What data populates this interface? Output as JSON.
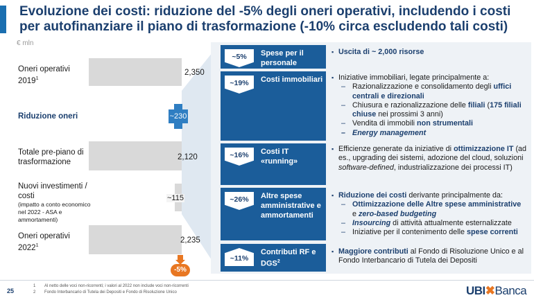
{
  "header": {
    "title": "Evoluzione dei costi: riduzione del -5% degli oneri operativi, includendo i costi per autofinanziare il piano di trasformazione (-10% circa escludendo tali costi)",
    "unit": "€ mln"
  },
  "waterfall": {
    "rows": [
      {
        "label": "Oneri operativi 2019",
        "sup": "1",
        "value": "2,350"
      },
      {
        "label": "Riduzione oneri",
        "value": "~230"
      },
      {
        "label": "Totale pre-piano di trasformazione",
        "value": "2,120"
      },
      {
        "label": "Nuovi investimenti / costi",
        "note": "(impatto a conto economico nel 2022 - ASA e ammortamenti)",
        "value": "~115"
      },
      {
        "label": "Oneri operativi 2022",
        "sup": "1",
        "value": "2,235"
      }
    ],
    "delta_badge": "-5%"
  },
  "breakdown": [
    {
      "pct": "~5%",
      "direction": "down",
      "label": "Spese per il personale"
    },
    {
      "pct": "~19%",
      "direction": "down",
      "label": "Costi immobiliari"
    },
    {
      "pct": "~16%",
      "direction": "down",
      "label": "Costi IT «running»"
    },
    {
      "pct": "~26%",
      "direction": "down",
      "label": "Altre spese amministrative e ammortamenti"
    },
    {
      "pct": "~11%",
      "direction": "up",
      "label": "Contributi RF e DGS",
      "sup": "2"
    }
  ],
  "details": {
    "personale": {
      "p1": "Uscita di ~ 2,000 risorse"
    },
    "immobiliari": {
      "p1": "Iniziative immobiliari, legate principalmente a:",
      "s1a": "Razionalizzazione e consolidamento degli ",
      "s1b": "uffici centrali e direzionali",
      "s2a": "Chiusura e razionalizzazione delle ",
      "s2b": "filiali",
      "s2c": " (",
      "s2d": "175 filiali chiuse",
      "s2e": " nei prossimi 3 anni)",
      "s3a": "Vendita di immobili ",
      "s3b": "non strumentali",
      "s4": "Energy management"
    },
    "it": {
      "p1a": "Efficienze generate da iniziative di ",
      "p1b": "ottimizzazione IT",
      "p1c": " (ad es., upgrading dei sistemi, adozione del cloud, soluzioni ",
      "p1d": "software-defined",
      "p1e": ", industrializzazione dei processi IT)"
    },
    "altre": {
      "p1a": "Riduzione dei costi",
      "p1b": " derivante principalmente da:",
      "s1a": "Ottimizzazione delle Altre spese amministrative",
      "s1b": " e ",
      "s1c": "zero-based budgeting",
      "s2a": "Insourcing",
      "s2b": " di attività attualmente esternalizzate",
      "s3a": "Iniziative per il contenimento delle ",
      "s3b": "spese correnti"
    },
    "contributi": {
      "p1a": "Maggiore contributi",
      "p1b": " al Fondo di Risoluzione Unico e al Fondo Interbancario di Tutela dei Depositi"
    }
  },
  "footer": {
    "page": "25",
    "notes": [
      {
        "n": "1",
        "text": "Al netto delle voci non-ricorrenti; i valori al 2022 non include voci non-ricorrenti"
      },
      {
        "n": "2",
        "text": "Fondo Interbancario di Tutela dei Depositi e Fondo di Risoluzione Unico"
      }
    ],
    "logo_ubi": "UBI",
    "logo_banca": "Banca"
  },
  "colors": {
    "navy": "#1b3f6e",
    "blue": "#1b5d9a",
    "orange": "#e87722",
    "gray": "#d9d9d9"
  }
}
